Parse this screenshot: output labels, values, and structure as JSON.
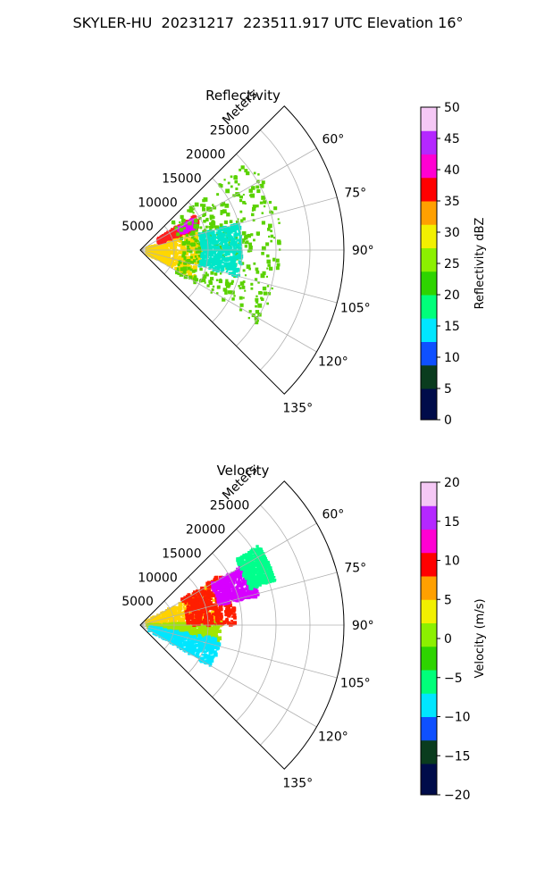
{
  "title": "SKYLER-HU  20231217  223511.917 UTC Elevation 16°",
  "chart_data": [
    {
      "type": "heatmap",
      "projection": "polar sector (PPI)",
      "title": "Reflectivity",
      "radial_axis_label": "Meters",
      "radial_ticks": [
        "5000",
        "10000",
        "15000",
        "20000",
        "25000"
      ],
      "radial_range": [
        0,
        30000
      ],
      "angle_range_deg": [
        45,
        135
      ],
      "angle_ticks": [
        "60°",
        "75°",
        "90°",
        "105°",
        "120°",
        "135°"
      ],
      "grid": true,
      "colorbar": {
        "label": "Reflectivity dBZ",
        "range": [
          0,
          50
        ],
        "ticks": [
          "0",
          "5",
          "10",
          "15",
          "20",
          "25",
          "30",
          "35",
          "40",
          "45",
          "50"
        ],
        "colormap": [
          "#000c4a",
          "#0a3c1e",
          "#0e50ff",
          "#00e6ff",
          "#00ff7a",
          "#2ed400",
          "#8cf000",
          "#f2f000",
          "#ffa000",
          "#ff0000",
          "#ff00d2",
          "#b428ff",
          "#f5c8f5"
        ]
      },
      "echo_regions": [
        {
          "description": "moderate echo core",
          "azimuth_deg": [
            72,
            118
          ],
          "range_m": [
            1000,
            9000
          ],
          "value_dbz": 28,
          "color": "#ffd700"
        },
        {
          "description": "strong echo cell",
          "azimuth_deg": [
            58,
            70
          ],
          "range_m": [
            3000,
            9500
          ],
          "value_dbz": 38,
          "color": "#ff2020"
        },
        {
          "description": "peak echo",
          "azimuth_deg": [
            60,
            68
          ],
          "range_m": [
            6500,
            9000
          ],
          "value_dbz": 45,
          "color": "#e600ff"
        },
        {
          "description": "light echo field",
          "azimuth_deg": [
            50,
            122
          ],
          "range_m": [
            6000,
            21000
          ],
          "value_dbz": 20,
          "color": "#5ad200"
        },
        {
          "description": "weak echo patches",
          "azimuth_deg": [
            75,
            105
          ],
          "range_m": [
            9000,
            15000
          ],
          "value_dbz": 14,
          "color": "#00e6c8"
        }
      ]
    },
    {
      "type": "heatmap",
      "projection": "polar sector (PPI)",
      "title": "Velocity",
      "radial_axis_label": "Meters",
      "radial_ticks": [
        "5000",
        "10000",
        "15000",
        "20000",
        "25000"
      ],
      "radial_range": [
        0,
        30000
      ],
      "angle_range_deg": [
        45,
        135
      ],
      "angle_ticks": [
        "60°",
        "75°",
        "90°",
        "105°",
        "120°",
        "135°"
      ],
      "grid": true,
      "colorbar": {
        "label": "Velocity (m/s)",
        "range": [
          -20,
          20
        ],
        "ticks": [
          "−20",
          "−15",
          "−10",
          "−5",
          "0",
          "5",
          "10",
          "15",
          "20"
        ],
        "colormap": [
          "#000c4a",
          "#0a3c1e",
          "#0e50ff",
          "#00e6ff",
          "#00ff7a",
          "#2ed400",
          "#8cf000",
          "#f2f000",
          "#ffa000",
          "#ff0000",
          "#ff00d2",
          "#b428ff",
          "#f5c8f5"
        ]
      },
      "echo_regions": [
        {
          "description": "near-zero velocity core",
          "azimuth_deg": [
            60,
            92
          ],
          "range_m": [
            1000,
            12000
          ],
          "value_ms": 0,
          "color": "#ffd200"
        },
        {
          "description": "light inbound band",
          "azimuth_deg": [
            88,
            102
          ],
          "range_m": [
            1000,
            12000
          ],
          "value_ms": -3,
          "color": "#a0e600"
        },
        {
          "description": "outbound band",
          "azimuth_deg": [
            58,
            90
          ],
          "range_m": [
            7000,
            14000
          ],
          "value_ms": 10,
          "color": "#ff1e00"
        },
        {
          "description": "strong outbound",
          "azimuth_deg": [
            60,
            76
          ],
          "range_m": [
            12000,
            18000
          ],
          "value_ms": 15,
          "color": "#d700ff"
        },
        {
          "description": "strong inbound",
          "azimuth_deg": [
            100,
            120
          ],
          "range_m": [
            1500,
            12000
          ],
          "value_ms": -10,
          "color": "#00e6ff"
        },
        {
          "description": "outer inbound",
          "azimuth_deg": [
            56,
            72
          ],
          "range_m": [
            17000,
            21000
          ],
          "value_ms": -8,
          "color": "#00ff8c"
        }
      ]
    }
  ]
}
